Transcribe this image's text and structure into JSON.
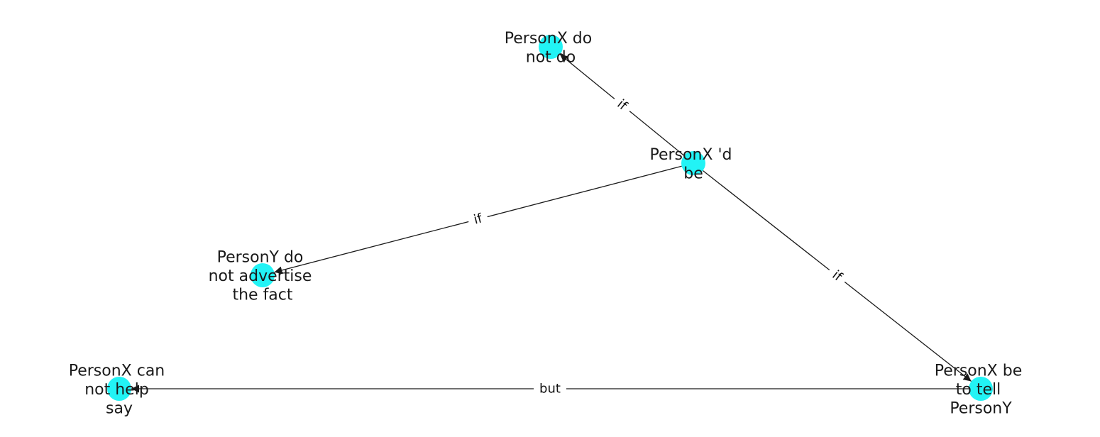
{
  "colors": {
    "node_fill": "#22f3f5",
    "edge": "#1a1a1a",
    "text": "#1a1a1a",
    "background": "#ffffff"
  },
  "graph": {
    "nodes": [
      {
        "id": "n1",
        "lines": [
          "PersonX do",
          "not do"
        ]
      },
      {
        "id": "n2",
        "lines": [
          "PersonX 'd",
          "be"
        ]
      },
      {
        "id": "n3",
        "lines": [
          "PersonY do",
          "not advertise",
          "the fact"
        ]
      },
      {
        "id": "n4",
        "lines": [
          "PersonX can",
          "not help",
          "say"
        ]
      },
      {
        "id": "n5",
        "lines": [
          "PersonX be",
          "to tell",
          "PersonY"
        ]
      }
    ],
    "edges": [
      {
        "id": "e1",
        "from": "n2",
        "to": "n1",
        "label": "if"
      },
      {
        "id": "e2",
        "from": "n2",
        "to": "n3",
        "label": "if"
      },
      {
        "id": "e3",
        "from": "n2",
        "to": "n5",
        "label": "if"
      },
      {
        "id": "e4",
        "from": "n5",
        "to": "n4",
        "label": "but"
      }
    ]
  }
}
